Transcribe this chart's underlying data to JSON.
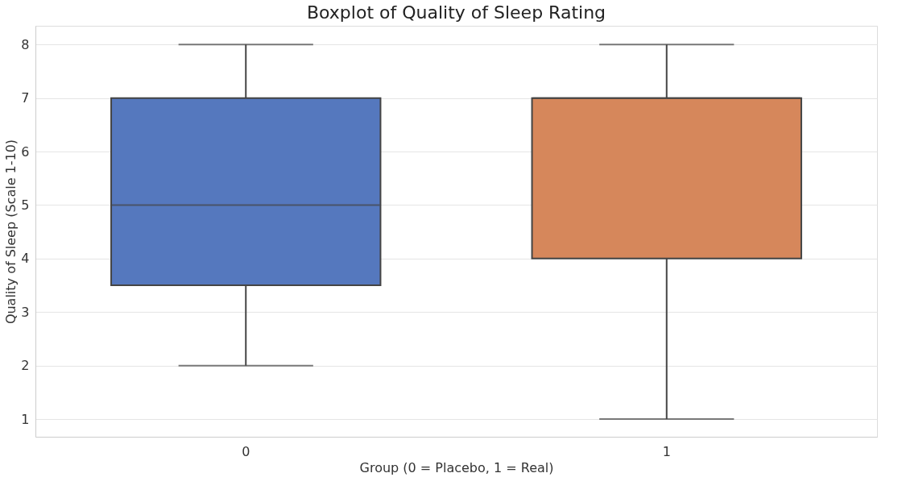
{
  "chart_data": {
    "type": "box",
    "title": "Boxplot of Quality of Sleep Rating",
    "xlabel": "Group (0 = Placebo, 1 = Real)",
    "ylabel": "Quality of Sleep (Scale 1-10)",
    "categories": [
      "0",
      "1"
    ],
    "boxes": [
      {
        "low": 2,
        "q1": 3.5,
        "median": 5,
        "q3": 7,
        "high": 8
      },
      {
        "low": 1,
        "q1": 4,
        "median": 7,
        "q3": 7,
        "high": 8
      }
    ],
    "colors": [
      "#5578be",
      "#d6875b"
    ],
    "ylim": [
      0.67,
      8.35
    ],
    "yticks": [
      1,
      2,
      3,
      4,
      5,
      6,
      7,
      8
    ],
    "grid": "y"
  }
}
